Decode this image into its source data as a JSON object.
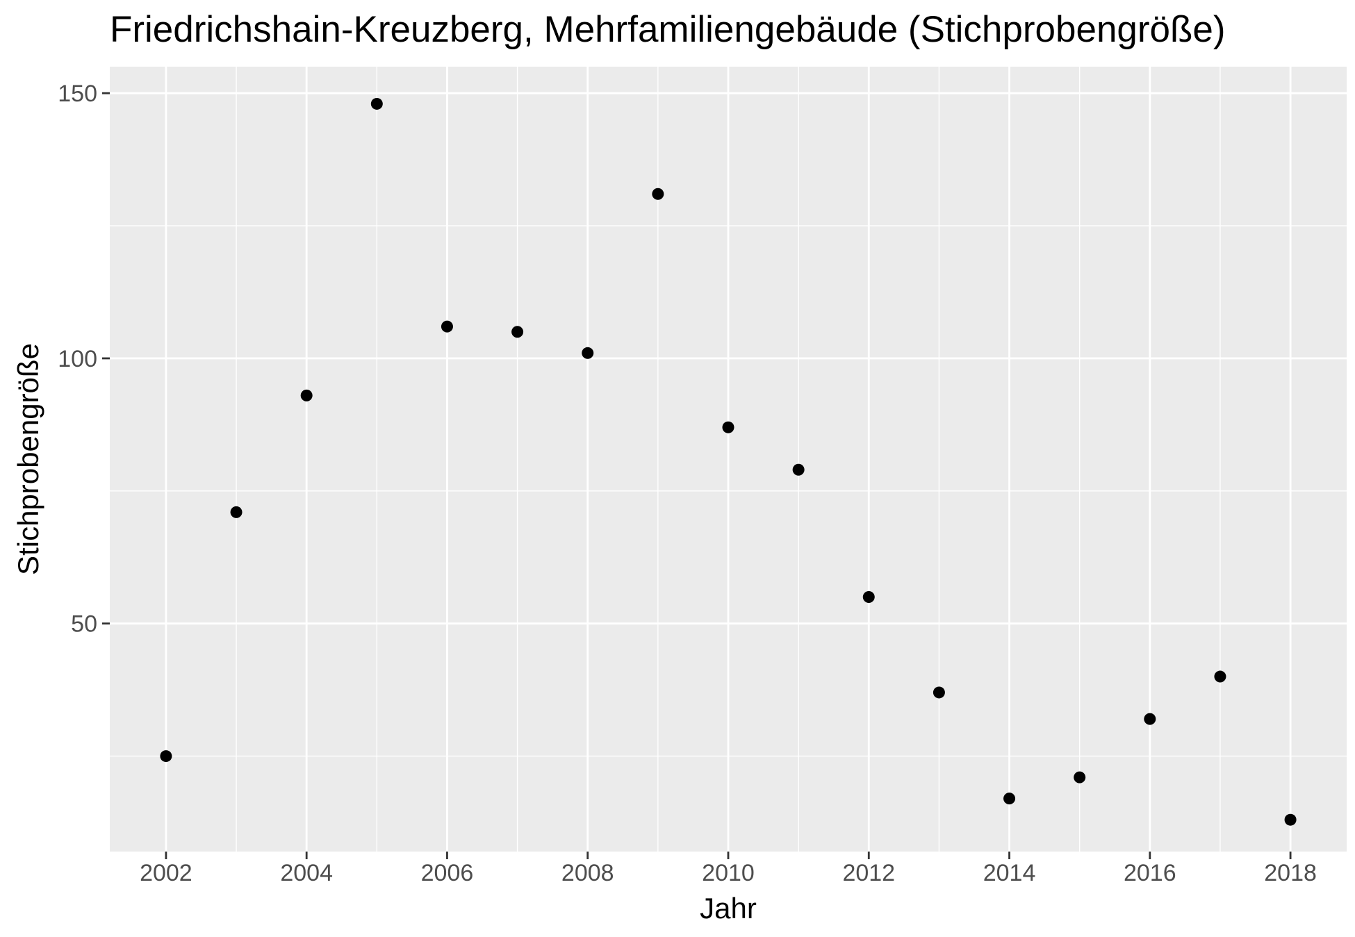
{
  "chart_data": {
    "type": "scatter",
    "title": "Friedrichshain-Kreuzberg, Mehrfamiliengebäude (Stichprobengröße)",
    "xlabel": "Jahr",
    "ylabel": "Stichprobengröße",
    "x": [
      2002,
      2003,
      2004,
      2005,
      2006,
      2007,
      2008,
      2009,
      2010,
      2011,
      2012,
      2013,
      2014,
      2015,
      2016,
      2017,
      2018
    ],
    "y": [
      25,
      71,
      93,
      148,
      106,
      105,
      101,
      131,
      87,
      79,
      55,
      37,
      17,
      21,
      32,
      40,
      13
    ],
    "xlim": [
      2001.2,
      2018.8
    ],
    "ylim": [
      7,
      155
    ],
    "x_ticks": [
      "2002",
      "2004",
      "2006",
      "2008",
      "2010",
      "2012",
      "2014",
      "2016",
      "2018"
    ],
    "x_tick_values": [
      2002,
      2004,
      2006,
      2008,
      2010,
      2012,
      2014,
      2016,
      2018
    ],
    "y_ticks": [
      "50",
      "100",
      "150"
    ],
    "y_tick_values": [
      50,
      100,
      150
    ],
    "x_minor_values": [
      2003,
      2005,
      2007,
      2009,
      2011,
      2013,
      2015,
      2017
    ],
    "y_minor_values": [
      25,
      75,
      125
    ],
    "grid": true,
    "legend": "none",
    "colors": {
      "panel": "#ebebeb",
      "grid": "#ffffff",
      "point": "#000000",
      "tick_text": "#4d4d4d"
    }
  }
}
